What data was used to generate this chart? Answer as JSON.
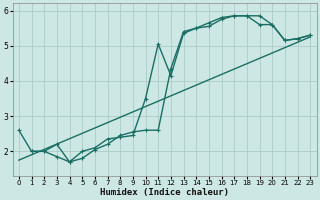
{
  "title": "",
  "xlabel": "Humidex (Indice chaleur)",
  "ylabel": "",
  "bg_color": "#cde8e4",
  "grid_color": "#aaccc8",
  "line_color": "#1a6e64",
  "xlim": [
    -0.5,
    23.5
  ],
  "ylim": [
    1.3,
    6.2
  ],
  "yticks": [
    2,
    3,
    4,
    5,
    6
  ],
  "xticks": [
    0,
    1,
    2,
    3,
    4,
    5,
    6,
    7,
    8,
    9,
    10,
    11,
    12,
    13,
    14,
    15,
    16,
    17,
    18,
    19,
    20,
    21,
    22,
    23
  ],
  "line1_x": [
    0,
    1,
    2,
    3,
    4,
    5,
    6,
    7,
    8,
    9,
    10,
    11,
    12,
    13,
    14,
    15,
    16,
    17,
    18,
    19,
    20,
    21,
    22,
    23
  ],
  "line1_y": [
    2.6,
    2.0,
    2.0,
    1.85,
    1.7,
    2.0,
    2.1,
    2.35,
    2.4,
    2.45,
    3.5,
    5.05,
    4.15,
    5.35,
    5.5,
    5.65,
    5.8,
    5.85,
    5.85,
    5.6,
    5.6,
    5.15,
    5.2,
    5.3
  ],
  "line2_x": [
    1,
    2,
    3,
    4,
    5,
    6,
    7,
    8,
    9,
    10,
    11,
    12,
    13,
    14,
    15,
    16,
    17,
    18,
    19,
    20,
    21,
    22,
    23
  ],
  "line2_y": [
    2.0,
    2.0,
    2.2,
    1.7,
    1.8,
    2.05,
    2.2,
    2.45,
    2.55,
    2.6,
    2.6,
    4.35,
    5.4,
    5.5,
    5.55,
    5.75,
    5.85,
    5.85,
    5.85,
    5.6,
    5.15,
    5.2,
    5.3
  ],
  "line3_x": [
    0,
    23
  ],
  "line3_y": [
    1.75,
    5.25
  ],
  "marker_size": 3.0,
  "linewidth": 1.0
}
